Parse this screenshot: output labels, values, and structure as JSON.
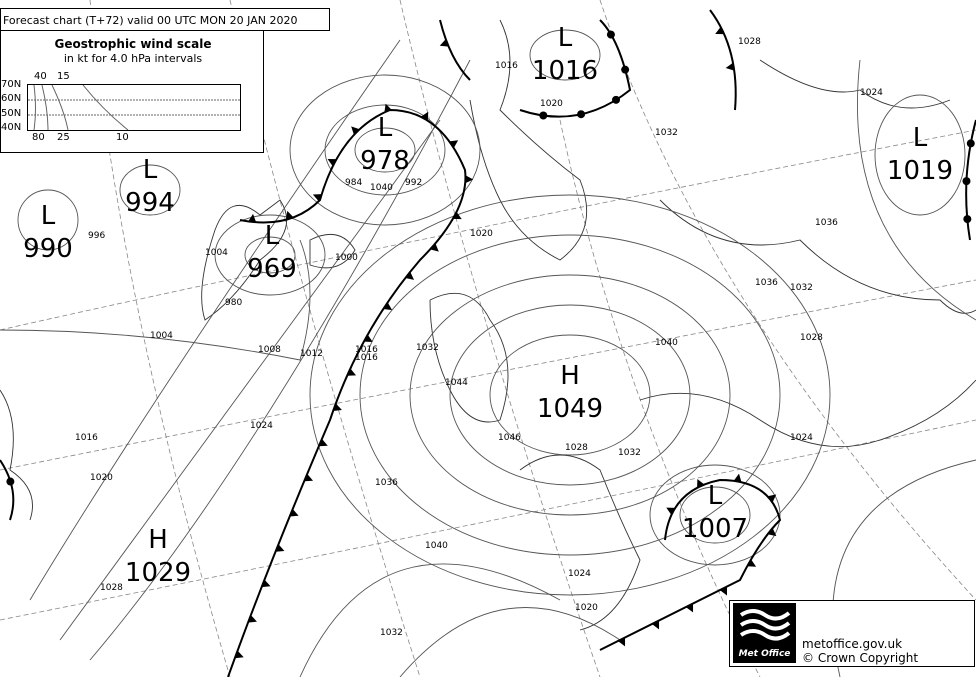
{
  "title": "Forecast chart (T+72) valid 00 UTC MON 20  JAN 2020",
  "wind_scale": {
    "title": "Geostrophic wind scale",
    "subtitle": "in kt for 4.0 hPa intervals",
    "latitudes": [
      "70N",
      "60N",
      "50N",
      "40N"
    ],
    "top_values": [
      "40",
      "15"
    ],
    "bottom_values": [
      "80",
      "25",
      "10"
    ]
  },
  "pressure_systems": [
    {
      "type": "L",
      "value": "990"
    },
    {
      "type": "L",
      "value": "994"
    },
    {
      "type": "L",
      "value": "978"
    },
    {
      "type": "L",
      "value": "969"
    },
    {
      "type": "L",
      "value": "1016"
    },
    {
      "type": "H",
      "value": "1049"
    },
    {
      "type": "L",
      "value": "1019"
    },
    {
      "type": "L",
      "value": "1007"
    },
    {
      "type": "H",
      "value": "1029"
    }
  ],
  "isobar_labels": [
    "1004",
    "1008",
    "1012",
    "1016",
    "1020",
    "1024",
    "1028",
    "1032",
    "1036",
    "1040",
    "1044",
    "1046",
    "1032",
    "1028",
    "1024",
    "1020",
    "1016",
    "1036",
    "1040",
    "1032",
    "1028",
    "1024",
    "1036",
    "1040",
    "1032",
    "1016",
    "1020",
    "1028",
    "1024",
    "1020",
    "1004",
    "996",
    "984",
    "992",
    "980",
    "1000",
    "1016",
    "1032"
  ],
  "logo": {
    "name": "Met Office",
    "site": "metoffice.gov.uk",
    "copyright": "© Crown Copyright"
  }
}
